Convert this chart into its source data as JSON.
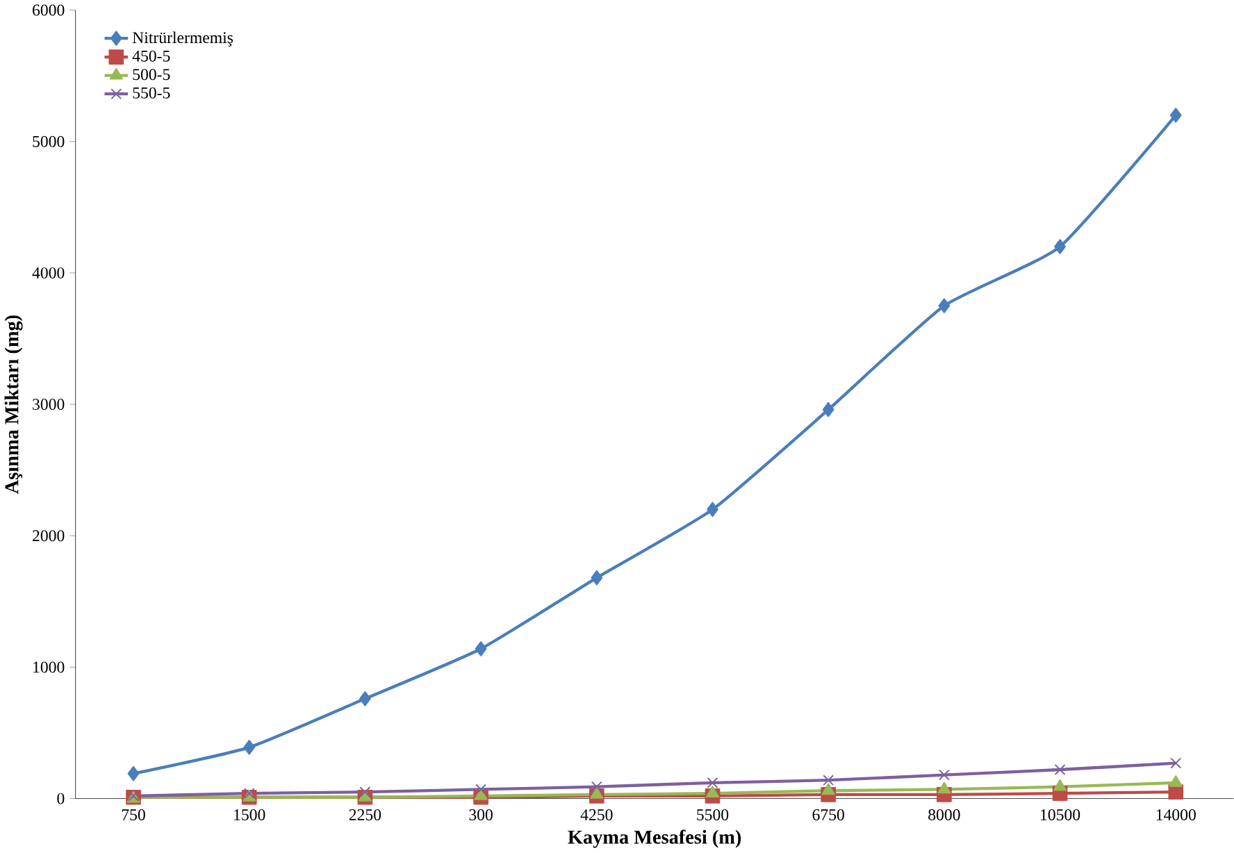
{
  "chart_data": {
    "type": "line",
    "xlabel": "Kayma Mesafesi (m)",
    "ylabel": "Aşınma Miktarı (mg)",
    "categories": [
      "750",
      "1500",
      "2250",
      "300",
      "4250",
      "5500",
      "6750",
      "8000",
      "10500",
      "14000"
    ],
    "ylim": [
      0,
      6000
    ],
    "yticks": [
      0,
      1000,
      2000,
      3000,
      4000,
      5000,
      6000
    ],
    "grid": false,
    "legend": "top left",
    "line_style": "solid",
    "series": [
      {
        "name": "Nitrürlermemiş",
        "color": "#4a7ebb",
        "marker": "diamond",
        "values": [
          190,
          390,
          760,
          1140,
          1680,
          2200,
          2960,
          3750,
          4200,
          5200
        ]
      },
      {
        "name": "450-5",
        "color": "#be4b48",
        "marker": "square",
        "values": [
          10,
          10,
          10,
          10,
          20,
          20,
          30,
          30,
          40,
          50
        ]
      },
      {
        "name": "500-5",
        "color": "#98b954",
        "marker": "triangle",
        "values": [
          0,
          10,
          10,
          20,
          30,
          40,
          60,
          70,
          90,
          120
        ]
      },
      {
        "name": "550-5",
        "color": "#7d60a0",
        "marker": "cross",
        "values": [
          20,
          40,
          50,
          70,
          90,
          120,
          140,
          180,
          220,
          270
        ]
      }
    ]
  }
}
